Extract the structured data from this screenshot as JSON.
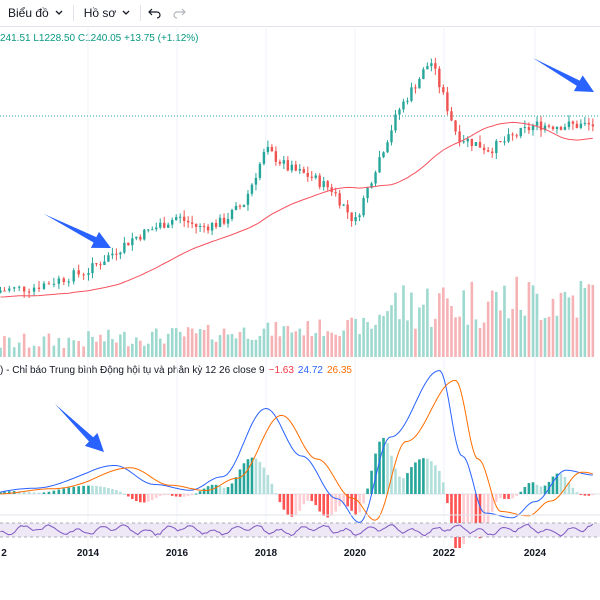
{
  "toolbar": {
    "chart_label": "Biểu đồ",
    "profile_label": "Hồ sơ",
    "icons": [
      "chevron-down-icon",
      "chevron-down-icon",
      "undo-icon",
      "redo-icon"
    ]
  },
  "ohlc_text": "241.51  L1228.50  C1240.05  +13.75 (+1.12%)",
  "macd": {
    "prefix": ") - Chỉ báo Trung bình Động hội tụ và phân kỳ 12 26 close 9",
    "hist_value": "−1.63",
    "macd_value": "24.72",
    "signal_value": "26.35"
  },
  "x_axis": {
    "ticks": [
      "2",
      "2014",
      "2016",
      "2018",
      "2020",
      "2022",
      "2024"
    ]
  },
  "colors": {
    "up": "#26a69a",
    "down": "#ef5350",
    "ma": "#f7525f",
    "macd": "#2962ff",
    "signal": "#ff6d00",
    "rsi": "#7e57c2",
    "arrow": "#2962ff"
  },
  "chart_data": {
    "type": "line",
    "title": "",
    "series": [
      {
        "values": [
          620,
          640,
          700,
          760,
          820,
          900,
          860,
          880,
          950,
          1150,
          1080,
          1050,
          1000,
          880,
          1100,
          1300,
          1480,
          1200,
          1150,
          1240,
          1240
        ]
      }
    ],
    "x": [
      "2012",
      "2013",
      "2014",
      "2014.5",
      "2015",
      "2016",
      "2016.5",
      "2017",
      "2017.5",
      "2018",
      "2018.5",
      "2019",
      "2019.5",
      "2020",
      "2020.5",
      "2021",
      "2021.7",
      "2022.3",
      "2023",
      "2024",
      "2025"
    ]
  }
}
